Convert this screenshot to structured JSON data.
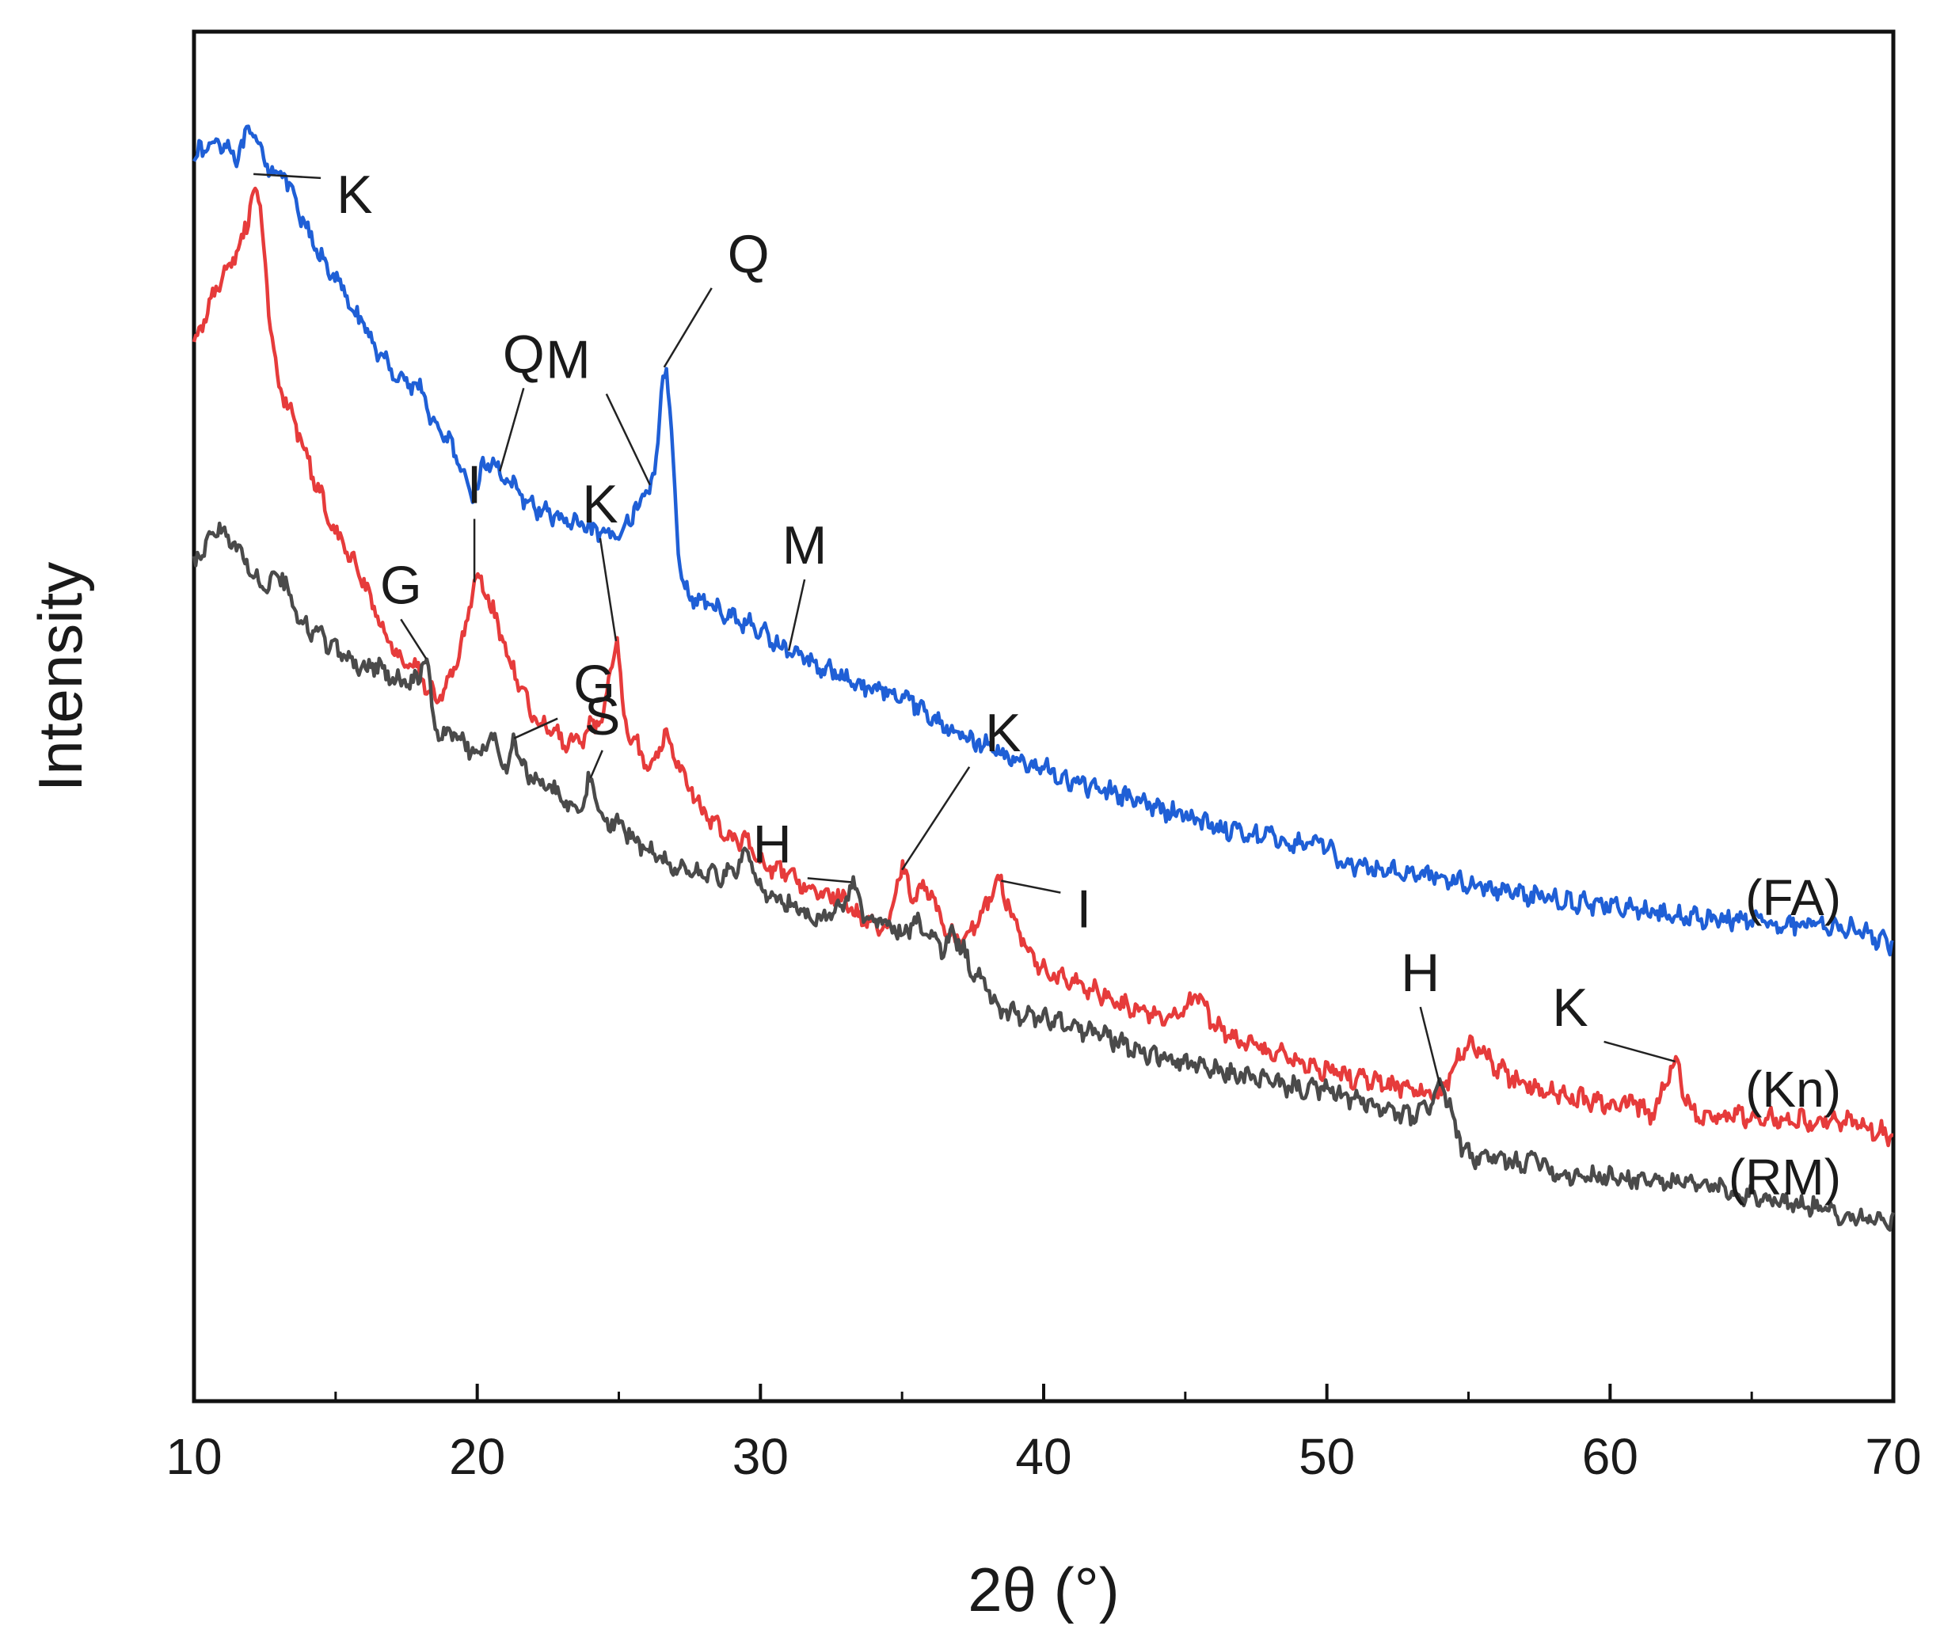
{
  "chart_data": {
    "type": "line",
    "title": "",
    "xlabel": "2θ (°)",
    "ylabel": "Intensity",
    "xlim": [
      10,
      70
    ],
    "ylim": [
      0,
      100
    ],
    "xticks": [
      10,
      20,
      30,
      40,
      50,
      60,
      70
    ],
    "yticks_shown": false,
    "grid": false,
    "legend": "series labels at right end of each curve",
    "series": [
      {
        "name": "(FA)",
        "color": "#1f5fd6",
        "points": [
          [
            10,
            91
          ],
          [
            10.5,
            91.6
          ],
          [
            11,
            92
          ],
          [
            11.5,
            91
          ],
          [
            12,
            92.6
          ],
          [
            12.3,
            91.4
          ],
          [
            12.7,
            90.1
          ],
          [
            13.2,
            89.4
          ],
          [
            13.6,
            87.2
          ],
          [
            14.2,
            84.5
          ],
          [
            15,
            81.9
          ],
          [
            16,
            78.5
          ],
          [
            16.5,
            76.7
          ],
          [
            17,
            75.3
          ],
          [
            17.5,
            74.4
          ],
          [
            18,
            73.9
          ],
          [
            18.5,
            71.1
          ],
          [
            19,
            70.2
          ],
          [
            19.5,
            67.4
          ],
          [
            19.9,
            66.5
          ],
          [
            20.3,
            68.5
          ],
          [
            20.8,
            67.9
          ],
          [
            21.5,
            66.1
          ],
          [
            22.5,
            64.8
          ],
          [
            23.5,
            64.0
          ],
          [
            24.5,
            63.2
          ],
          [
            25,
            63.5
          ],
          [
            25.5,
            64.8
          ],
          [
            26,
            66.5
          ],
          [
            26.3,
            68.3
          ],
          [
            26.6,
            75.5
          ],
          [
            26.9,
            69.5
          ],
          [
            27.2,
            60.0
          ],
          [
            28,
            58.3
          ],
          [
            29,
            57.3
          ],
          [
            30,
            56.2
          ],
          [
            31,
            54.8
          ],
          [
            32,
            53.8
          ],
          [
            33,
            52.8
          ],
          [
            34,
            52.0
          ],
          [
            35,
            51.7
          ],
          [
            36,
            50.0
          ],
          [
            37,
            48.8
          ],
          [
            38,
            47.8
          ],
          [
            39,
            46.9
          ],
          [
            40,
            46.2
          ],
          [
            41,
            45.2
          ],
          [
            42,
            44.8
          ],
          [
            43,
            44.0
          ],
          [
            44,
            43.3
          ],
          [
            45,
            42.8
          ],
          [
            46,
            42.0
          ],
          [
            47,
            41.6
          ],
          [
            48,
            41.2
          ],
          [
            49,
            40.7
          ],
          [
            50,
            40.8
          ],
          [
            50.5,
            39.3
          ],
          [
            51,
            39.0
          ],
          [
            52,
            38.8
          ],
          [
            53,
            38.6
          ],
          [
            54,
            38.3
          ],
          [
            55,
            37.8
          ],
          [
            56,
            37.4
          ],
          [
            57,
            37.0
          ],
          [
            58,
            36.7
          ],
          [
            59,
            36.4
          ],
          [
            60,
            36.2
          ],
          [
            61,
            35.8
          ],
          [
            62,
            35.5
          ],
          [
            63,
            35.3
          ],
          [
            64,
            35.2
          ],
          [
            65,
            35.0
          ],
          [
            66,
            34.8
          ],
          [
            67,
            34.8
          ],
          [
            68,
            34.8
          ],
          [
            69,
            34.2
          ],
          [
            70,
            33.3
          ]
        ]
      },
      {
        "name": "(Kn)",
        "color": "#e63b3b",
        "points": [
          [
            10,
            77.2
          ],
          [
            10.5,
            79.9
          ],
          [
            11,
            82.2
          ],
          [
            11.5,
            83.7
          ],
          [
            11.9,
            86.0
          ],
          [
            12.1,
            88.8
          ],
          [
            12.4,
            86.0
          ],
          [
            12.7,
            78.5
          ],
          [
            13,
            74.2
          ],
          [
            13.5,
            71.6
          ],
          [
            14,
            69.0
          ],
          [
            14.3,
            66.9
          ],
          [
            15,
            63.5
          ],
          [
            16,
            60.0
          ],
          [
            16.5,
            57.2
          ],
          [
            17,
            55.0
          ],
          [
            17.5,
            53.8
          ],
          [
            18,
            53.0
          ],
          [
            18.5,
            51.5
          ],
          [
            19,
            52.5
          ],
          [
            19.5,
            55.5
          ],
          [
            19.9,
            59.8
          ],
          [
            20.3,
            59.0
          ],
          [
            21,
            55.0
          ],
          [
            21.5,
            52.3
          ],
          [
            22,
            50.0
          ],
          [
            22.5,
            49.0
          ],
          [
            23,
            48.3
          ],
          [
            23.5,
            48.0
          ],
          [
            24,
            49.3
          ],
          [
            24.5,
            50.5
          ],
          [
            24.9,
            55.5
          ],
          [
            25.2,
            50.0
          ],
          [
            25.6,
            48.0
          ],
          [
            26.1,
            46.5
          ],
          [
            26.6,
            48.5
          ],
          [
            27,
            47.0
          ],
          [
            27.5,
            45.0
          ],
          [
            28,
            43.0
          ],
          [
            28.5,
            42.0
          ],
          [
            29,
            41.2
          ],
          [
            29.5,
            40.9
          ],
          [
            30,
            39.4
          ],
          [
            31,
            38.4
          ],
          [
            32,
            37.3
          ],
          [
            33,
            36.6
          ],
          [
            33.5,
            35.3
          ],
          [
            34.5,
            34.8
          ],
          [
            35,
            38.8
          ],
          [
            35.4,
            36.8
          ],
          [
            35.9,
            37.5
          ],
          [
            36.3,
            35.6
          ],
          [
            36.8,
            34.0
          ],
          [
            37.4,
            34.5
          ],
          [
            38.0,
            36.2
          ],
          [
            38.4,
            38.0
          ],
          [
            38.8,
            36.0
          ],
          [
            39.3,
            33.5
          ],
          [
            40,
            31.5
          ],
          [
            41,
            30.5
          ],
          [
            42,
            29.8
          ],
          [
            43,
            28.8
          ],
          [
            44,
            28.2
          ],
          [
            45,
            28.4
          ],
          [
            45.4,
            29.8
          ],
          [
            46,
            27.6
          ],
          [
            47,
            26.2
          ],
          [
            48,
            25.5
          ],
          [
            49,
            24.8
          ],
          [
            50,
            24.2
          ],
          [
            51,
            23.6
          ],
          [
            52,
            23.2
          ],
          [
            53,
            22.8
          ],
          [
            54,
            22.5
          ],
          [
            54.5,
            24.6
          ],
          [
            55,
            25.8
          ],
          [
            55.5,
            25.5
          ],
          [
            56,
            24.3
          ],
          [
            57,
            23.0
          ],
          [
            58,
            22.5
          ],
          [
            59,
            22.0
          ],
          [
            60,
            21.8
          ],
          [
            61,
            21.6
          ],
          [
            61.5,
            21.0
          ],
          [
            62,
            23.2
          ],
          [
            62.3,
            24.8
          ],
          [
            62.7,
            22.0
          ],
          [
            63.2,
            20.8
          ],
          [
            64,
            20.9
          ],
          [
            65,
            20.7
          ],
          [
            66,
            20.5
          ],
          [
            67,
            20.5
          ],
          [
            68,
            20.6
          ],
          [
            69,
            20.2
          ],
          [
            70,
            19.3
          ]
        ]
      },
      {
        "name": "(RM)",
        "color": "#4a4a4a",
        "points": [
          [
            10,
            61.2
          ],
          [
            10.5,
            62.8
          ],
          [
            10.9,
            63.8
          ],
          [
            11.5,
            62.3
          ],
          [
            12,
            60.8
          ],
          [
            12.5,
            59.5
          ],
          [
            13,
            60.5
          ],
          [
            13.5,
            57.8
          ],
          [
            14,
            56.5
          ],
          [
            14.5,
            55.8
          ],
          [
            15,
            54.8
          ],
          [
            15.5,
            54.2
          ],
          [
            16,
            53.3
          ],
          [
            16.5,
            53.8
          ],
          [
            17,
            52.7
          ],
          [
            17.5,
            52.5
          ],
          [
            17.9,
            52.7
          ],
          [
            18.2,
            54.2
          ],
          [
            18.5,
            49.2
          ],
          [
            19,
            48.8
          ],
          [
            19.5,
            48.3
          ],
          [
            20,
            47.3
          ],
          [
            20.5,
            48.6
          ],
          [
            21,
            46.0
          ],
          [
            21.3,
            48.4
          ],
          [
            21.7,
            45.9
          ],
          [
            22.2,
            45.2
          ],
          [
            22.8,
            44.4
          ],
          [
            23.3,
            43.3
          ],
          [
            23.8,
            43.8
          ],
          [
            24,
            45.5
          ],
          [
            24.4,
            42.7
          ],
          [
            25,
            42.0
          ],
          [
            26,
            40.3
          ],
          [
            27,
            39.1
          ],
          [
            28,
            38.5
          ],
          [
            29,
            38.5
          ],
          [
            29.5,
            39.8
          ],
          [
            30,
            37.3
          ],
          [
            31,
            36.3
          ],
          [
            32,
            35.3
          ],
          [
            33,
            36.4
          ],
          [
            33.2,
            37.9
          ],
          [
            33.7,
            35.4
          ],
          [
            34.5,
            34.9
          ],
          [
            35,
            34.1
          ],
          [
            35.5,
            34.8
          ],
          [
            36,
            34.0
          ],
          [
            36.5,
            33.0
          ],
          [
            36.8,
            34.0
          ],
          [
            37.5,
            31.5
          ],
          [
            38,
            30.1
          ],
          [
            38.5,
            28.6
          ],
          [
            39,
            28.3
          ],
          [
            40,
            28.0
          ],
          [
            41,
            27.3
          ],
          [
            42,
            26.8
          ],
          [
            43,
            25.9
          ],
          [
            44,
            25.2
          ],
          [
            45,
            24.7
          ],
          [
            46,
            24.1
          ],
          [
            47,
            23.8
          ],
          [
            48,
            23.3
          ],
          [
            49,
            22.9
          ],
          [
            50,
            22.7
          ],
          [
            51,
            22.0
          ],
          [
            52,
            21.3
          ],
          [
            53,
            20.8
          ],
          [
            53.5,
            21.4
          ],
          [
            54,
            23.0
          ],
          [
            54.3,
            21.8
          ],
          [
            54.6,
            19.5
          ],
          [
            55,
            17.9
          ],
          [
            56,
            17.7
          ],
          [
            57,
            17.4
          ],
          [
            57.5,
            17.8
          ],
          [
            58,
            16.7
          ],
          [
            59,
            16.5
          ],
          [
            60,
            16.3
          ],
          [
            61,
            16.2
          ],
          [
            62,
            16.0
          ],
          [
            63,
            15.8
          ],
          [
            64,
            15.5
          ],
          [
            65,
            15.0
          ],
          [
            66,
            14.7
          ],
          [
            67,
            14.2
          ],
          [
            68,
            13.7
          ],
          [
            69,
            13.4
          ],
          [
            70,
            12.9
          ]
        ]
      }
    ],
    "annotations": [
      {
        "label": "K",
        "x": 12.1,
        "y": 89.6,
        "series": "(Kn)"
      },
      {
        "label": "I",
        "x": 19.9,
        "y": 59.8,
        "series": "(Kn)"
      },
      {
        "label": "Q",
        "x": 20.8,
        "y": 67.9,
        "series": "(FA)"
      },
      {
        "label": "K",
        "x": 24.9,
        "y": 55.5,
        "series": "(Kn)"
      },
      {
        "label": "M",
        "x": 26.1,
        "y": 66.9,
        "series": "(FA)"
      },
      {
        "label": "Q",
        "x": 26.6,
        "y": 75.5,
        "series": "(FA)"
      },
      {
        "label": "M",
        "x": 31.0,
        "y": 54.8,
        "series": "(FA)"
      },
      {
        "label": "K",
        "x": 35.0,
        "y": 38.8,
        "series": "(Kn)"
      },
      {
        "label": "I",
        "x": 38.5,
        "y": 38.0,
        "series": "(Kn)"
      },
      {
        "label": "K",
        "x": 62.3,
        "y": 24.8,
        "series": "(Kn)"
      },
      {
        "label": "G",
        "x": 18.2,
        "y": 54.2,
        "series": "(RM)"
      },
      {
        "label": "G",
        "x": 21.3,
        "y": 48.4,
        "series": "(RM)"
      },
      {
        "label": "S",
        "x": 24.0,
        "y": 45.5,
        "series": "(RM)"
      },
      {
        "label": "H",
        "x": 33.2,
        "y": 37.9,
        "series": "(RM)"
      },
      {
        "label": "H",
        "x": 54.0,
        "y": 23.0,
        "series": "(RM)"
      }
    ]
  }
}
